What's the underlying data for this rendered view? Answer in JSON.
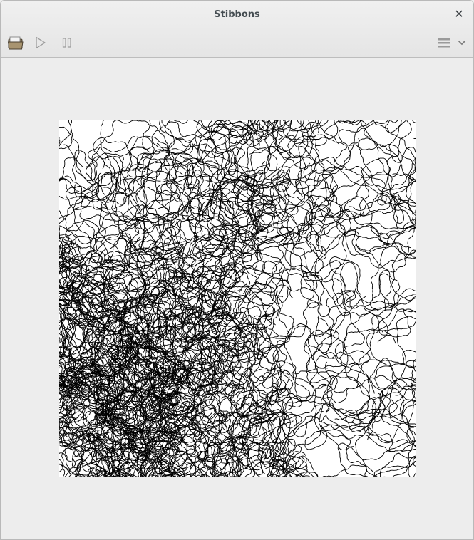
{
  "window": {
    "title": "Stibbons"
  },
  "toolbar": {
    "open_icon": "open-file-icon",
    "play_icon": "play-icon",
    "pause_icon": "pause-icon",
    "menu_icon": "hamburger-menu-icon",
    "chevron_icon": "chevron-down-icon",
    "close_glyph": "✕"
  },
  "colors": {
    "background": "#ededed",
    "canvas": "#ffffff",
    "trace": "#000000",
    "icon_dim": "#9a9a9a"
  }
}
